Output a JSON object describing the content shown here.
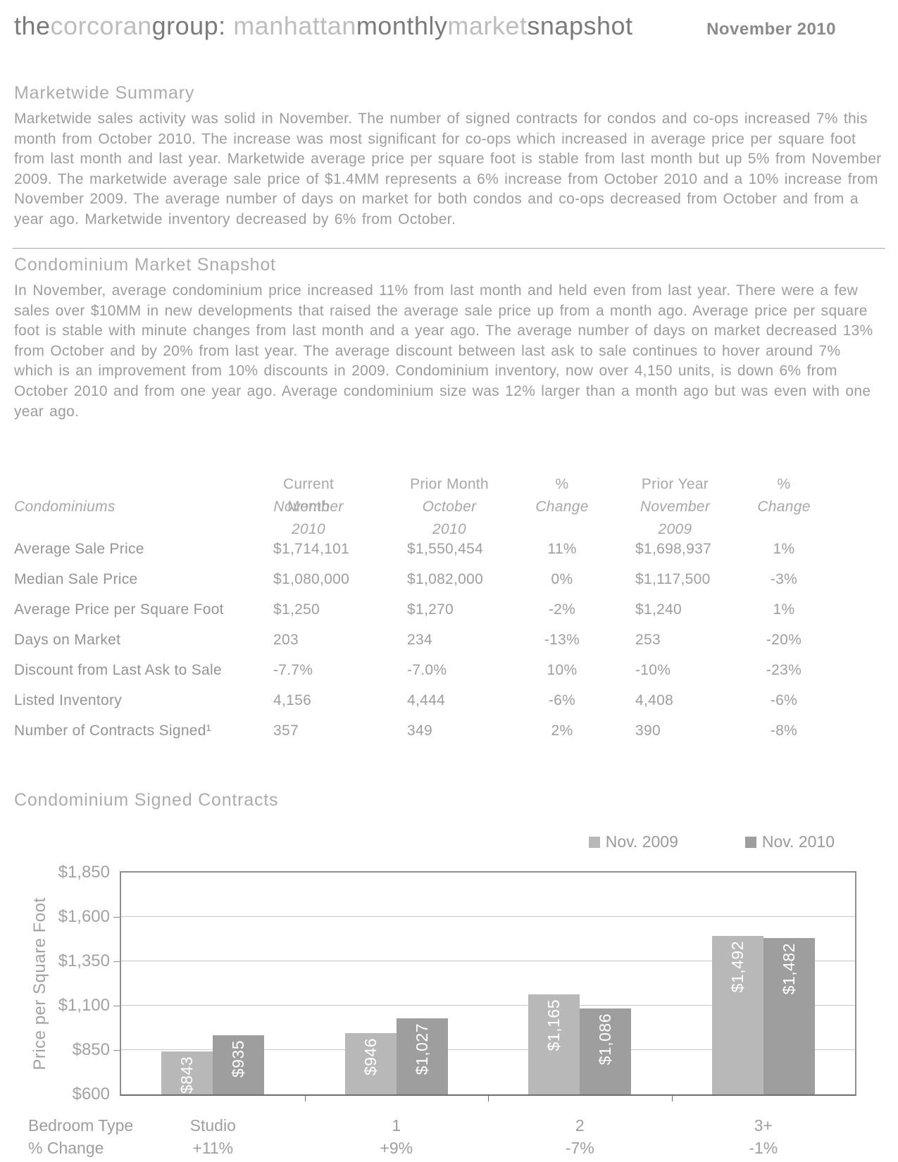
{
  "header": {
    "logo_segments": [
      {
        "text": "the",
        "tone": "dark"
      },
      {
        "text": "corcoran",
        "tone": "light"
      },
      {
        "text": "group: ",
        "tone": "dark"
      },
      {
        "text": "manhattan",
        "tone": "light"
      },
      {
        "text": "monthly",
        "tone": "dark"
      },
      {
        "text": "market",
        "tone": "light"
      },
      {
        "text": "snapshot",
        "tone": "dark"
      }
    ],
    "date": "November 2010"
  },
  "marketwide": {
    "heading": "Marketwide Summary",
    "body": "Marketwide sales activity was solid in November. The number of signed contracts for condos and co-ops increased 7% this month from October 2010. The increase was most significant for co-ops which increased in average price per square foot from last month and last year. Marketwide average price per square foot is stable from last month but up 5% from November 2009. The marketwide average sale price of $1.4MM represents a 6% increase from October 2010 and a 10% increase from November 2009. The average number of days on market for both condos and co-ops decreased from October and from a year ago. Marketwide inventory decreased by 6% from October."
  },
  "condo": {
    "heading": "Condominium Market Snapshot",
    "body": "In November, average condominium price increased 11% from last month and held even from last year. There were a few sales over $10MM in new developments that raised the average sale price up from a month ago. Average price per square foot is stable with minute changes from last month and a year ago. The average number of days on market decreased 13% from October and by 20% from last year. The average discount between last ask to sale continues to hover around 7% which is an improvement from 10% discounts in 2009. Condominium inventory, now over 4,150 units, is down 6% from October 2010 and from one year ago. Average condominium size was 12% larger than a month ago but was even with one year ago."
  },
  "table": {
    "header": [
      {
        "line1": "",
        "line2": "Condominiums"
      },
      {
        "line1": "Current Month",
        "line2": "November 2010"
      },
      {
        "line1": "Prior Month",
        "line2": "October 2010"
      },
      {
        "line1": "%",
        "line2": "Change"
      },
      {
        "line1": "Prior Year",
        "line2": "November 2009"
      },
      {
        "line1": "%",
        "line2": "Change"
      }
    ],
    "rows": [
      [
        "Average Sale Price",
        "$1,714,101",
        "$1,550,454",
        "11%",
        "$1,698,937",
        "1%"
      ],
      [
        "Median Sale Price",
        "$1,080,000",
        "$1,082,000",
        "0%",
        "$1,117,500",
        "-3%"
      ],
      [
        "Average Price per Square Foot",
        "$1,250",
        "$1,270",
        "-2%",
        "$1,240",
        "1%"
      ],
      [
        "Days on Market",
        "203",
        "234",
        "-13%",
        "253",
        "-20%"
      ],
      [
        "Discount from Last Ask to Sale",
        "-7.7%",
        "-7.0%",
        "10%",
        "-10%",
        "-23%"
      ],
      [
        "Listed Inventory",
        "4,156",
        "4,444",
        "-6%",
        "4,408",
        "-6%"
      ],
      [
        "Number of Contracts Signed¹",
        "357",
        "349",
        "2%",
        "390",
        "-8%"
      ]
    ]
  },
  "chart_section": {
    "heading": "Condominium Signed Contracts"
  },
  "chart_data": {
    "type": "bar",
    "title": "Condominium Signed Contracts",
    "ylabel": "Price per Square Foot",
    "xlabel_row1": "Bedroom Type",
    "xlabel_row2": "% Change",
    "ylim": [
      600,
      1850
    ],
    "yticks": [
      600,
      850,
      1100,
      1350,
      1600,
      1850
    ],
    "ytick_labels": [
      "$600",
      "$850",
      "$1,100",
      "$1,350",
      "$1,600",
      "$1,850"
    ],
    "grid": true,
    "legend_position": "top-right",
    "categories": [
      "Studio",
      "1",
      "2",
      "3+"
    ],
    "pct_change": [
      "+11%",
      "+9%",
      "-7%",
      "-1%"
    ],
    "series": [
      {
        "name": "Nov. 2009",
        "color": "#b8b8b8",
        "values": [
          843,
          946,
          1165,
          1492
        ],
        "labels": [
          "$843",
          "$946",
          "$1,165",
          "$1,492"
        ]
      },
      {
        "name": "Nov. 2010",
        "color": "#9e9e9e",
        "values": [
          935,
          1027,
          1086,
          1482
        ],
        "labels": [
          "$935",
          "$1,027",
          "$1,086",
          "$1,482"
        ]
      }
    ]
  }
}
